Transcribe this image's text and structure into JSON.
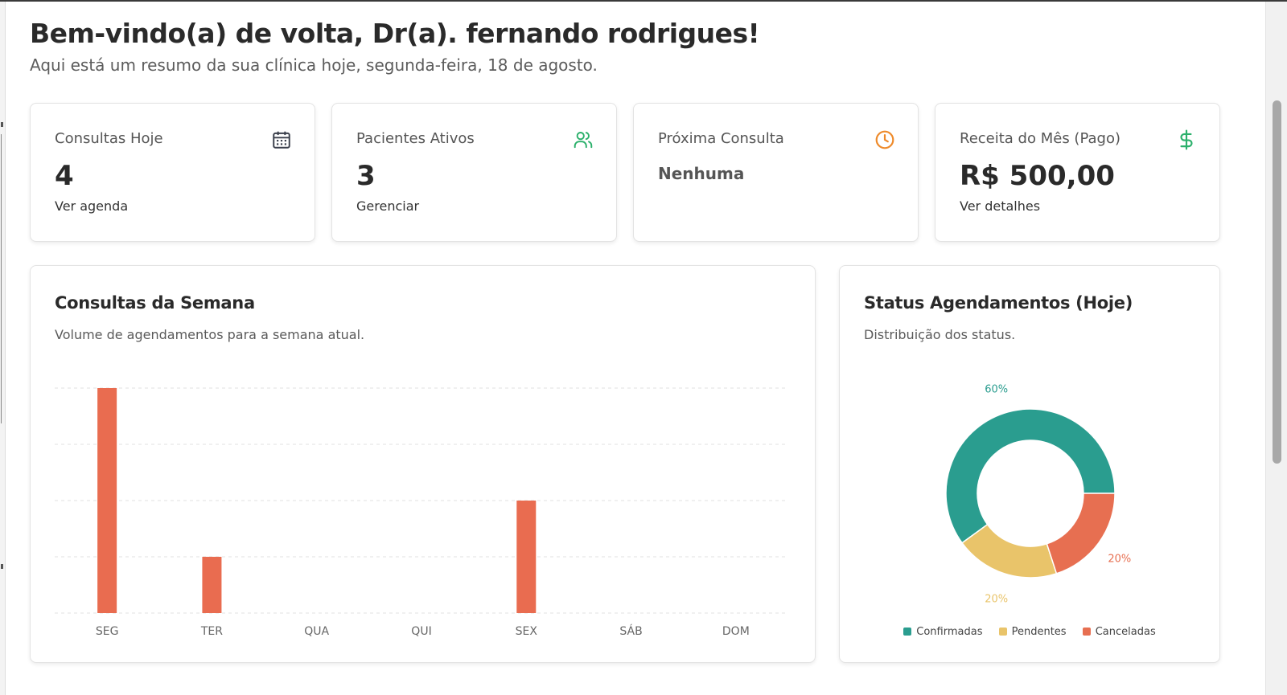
{
  "header": {
    "title": "Bem-vindo(a) de volta, Dr(a). fernando rodrigues!",
    "subtitle": "Aqui está um resumo da sua clínica hoje, segunda-feira, 18 de agosto."
  },
  "stats": [
    {
      "label": "Consultas Hoje",
      "value": "4",
      "link": "Ver agenda",
      "icon": "calendar-icon",
      "icon_color": "#3a3f4b"
    },
    {
      "label": "Pacientes Ativos",
      "value": "3",
      "link": "Gerenciar",
      "icon": "users-icon",
      "icon_color": "#2bb06b"
    },
    {
      "label": "Próxima Consulta",
      "value": "Nenhuma",
      "link": "",
      "icon": "clock-icon",
      "icon_color": "#ee8a2a"
    },
    {
      "label": "Receita do Mês (Pago)",
      "value": "R$ 500,00",
      "link": "Ver detalhes",
      "icon": "dollar-icon",
      "icon_color": "#2bb06b"
    }
  ],
  "week_panel": {
    "title": "Consultas da Semana",
    "subtitle": "Volume de agendamentos para a semana atual."
  },
  "status_panel": {
    "title": "Status Agendamentos (Hoje)",
    "subtitle": "Distribuição dos status."
  },
  "chart_data": [
    {
      "type": "bar",
      "title": "Consultas da Semana",
      "categories": [
        "SEG",
        "TER",
        "QUA",
        "QUI",
        "SEX",
        "SÁB",
        "DOM"
      ],
      "values": [
        4,
        1,
        0,
        0,
        2,
        0,
        0
      ],
      "ylim": [
        0,
        4
      ],
      "grid": true,
      "color": "#e96c50"
    },
    {
      "type": "pie",
      "title": "Status Agendamentos (Hoje)",
      "labels": [
        "Confirmadas",
        "Pendentes",
        "Canceladas"
      ],
      "values": [
        60,
        20,
        20
      ],
      "value_labels": [
        "60%",
        "20%",
        "20%"
      ],
      "colors": [
        "#2a9d8f",
        "#e9c46a",
        "#e76f51"
      ],
      "legend": "bottom"
    }
  ]
}
